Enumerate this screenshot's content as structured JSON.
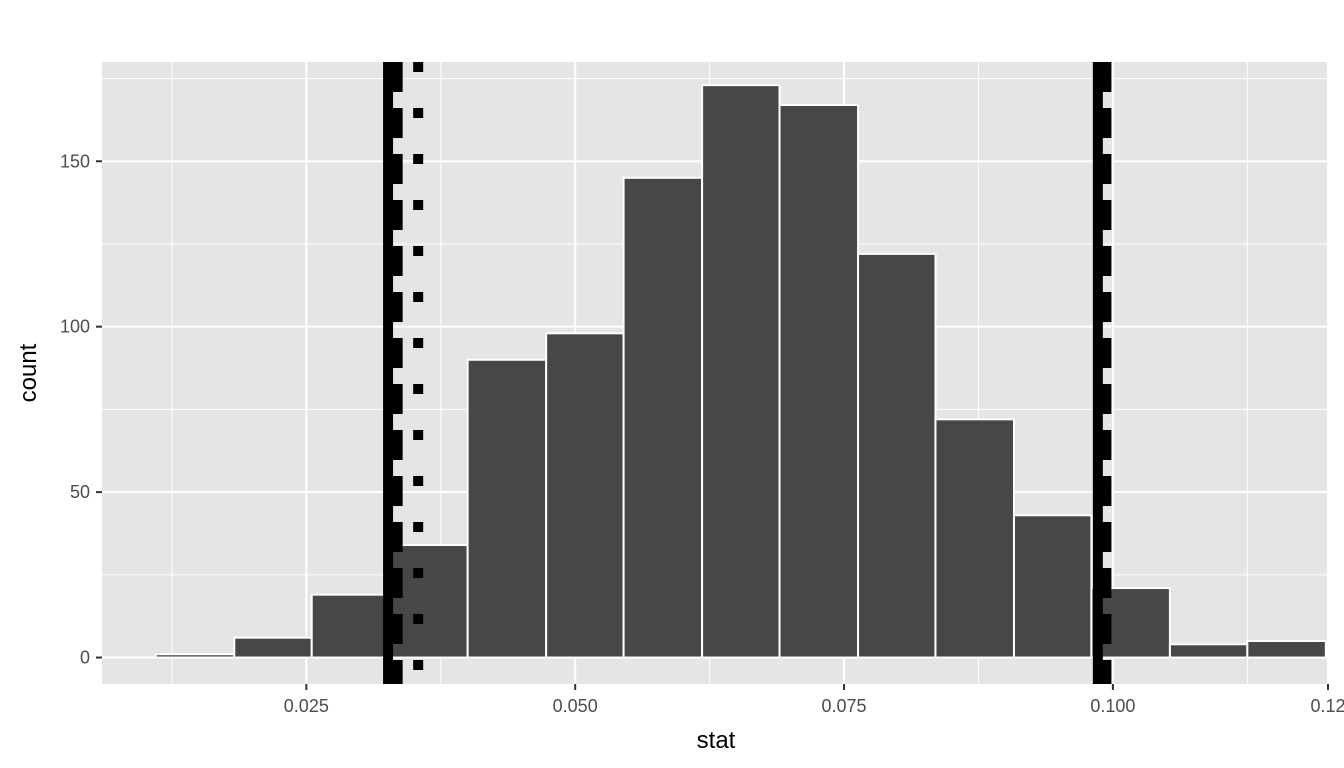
{
  "chart_data": {
    "type": "bar",
    "subtype": "histogram",
    "title": "",
    "xlabel": "stat",
    "ylabel": "count",
    "xlim": [
      0.006,
      0.12
    ],
    "ylim": [
      -8,
      180
    ],
    "x_ticks": [
      {
        "value": 0.025,
        "label": "0.025"
      },
      {
        "value": 0.05,
        "label": "0.050"
      },
      {
        "value": 0.075,
        "label": "0.075"
      },
      {
        "value": 0.1,
        "label": "0.100"
      },
      {
        "value": 0.12,
        "label": "0.12"
      }
    ],
    "y_ticks": [
      {
        "value": 0,
        "label": "0"
      },
      {
        "value": 50,
        "label": "50"
      },
      {
        "value": 100,
        "label": "100"
      },
      {
        "value": 150,
        "label": "150"
      }
    ],
    "x_minor_ticks": [
      0.0125,
      0.0375,
      0.0625,
      0.0875,
      0.1125
    ],
    "y_minor_ticks": [
      25,
      75,
      125,
      175
    ],
    "bin_width": 0.00725,
    "bins": [
      {
        "xmin": 0.011,
        "xmax": 0.0183,
        "count": 1
      },
      {
        "xmin": 0.0183,
        "xmax": 0.0255,
        "count": 6
      },
      {
        "xmin": 0.0255,
        "xmax": 0.0328,
        "count": 19
      },
      {
        "xmin": 0.0328,
        "xmax": 0.04,
        "count": 34
      },
      {
        "xmin": 0.04,
        "xmax": 0.0473,
        "count": 90
      },
      {
        "xmin": 0.0473,
        "xmax": 0.0545,
        "count": 98
      },
      {
        "xmin": 0.0545,
        "xmax": 0.0618,
        "count": 145
      },
      {
        "xmin": 0.0618,
        "xmax": 0.069,
        "count": 173
      },
      {
        "xmin": 0.069,
        "xmax": 0.0763,
        "count": 167
      },
      {
        "xmin": 0.0763,
        "xmax": 0.0835,
        "count": 122
      },
      {
        "xmin": 0.0835,
        "xmax": 0.0908,
        "count": 72
      },
      {
        "xmin": 0.0908,
        "xmax": 0.098,
        "count": 43
      },
      {
        "xmin": 0.098,
        "xmax": 0.1053,
        "count": 21
      },
      {
        "xmin": 0.1053,
        "xmax": 0.1125,
        "count": 4
      },
      {
        "xmin": 0.1125,
        "xmax": 0.1198,
        "count": 5
      }
    ],
    "reference_lines": [
      {
        "x": 0.0326,
        "style": "solid"
      },
      {
        "x": 0.0334,
        "style": "dashed"
      },
      {
        "x": 0.0354,
        "style": "dotted"
      },
      {
        "x": 0.0986,
        "style": "solid"
      },
      {
        "x": 0.0993,
        "style": "dashed"
      }
    ],
    "grid": true,
    "legend": "none",
    "colors": {
      "panel_bg": "#e5e5e5",
      "grid": "#ffffff",
      "bar_fill": "#474747",
      "bar_stroke": "#ffffff",
      "ref_line": "#000000",
      "tick_text": "#4d4d4d"
    }
  }
}
